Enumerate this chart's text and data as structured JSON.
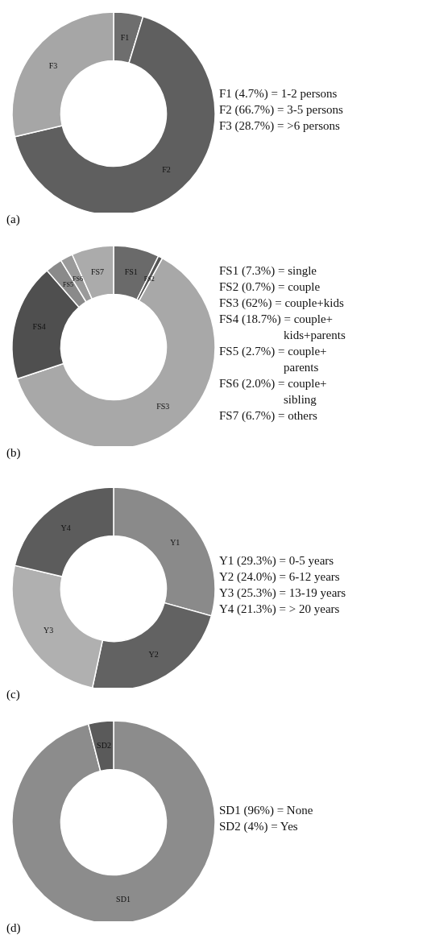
{
  "chart_data": [
    {
      "type": "donut",
      "title": "(a)",
      "categories": [
        "F1",
        "F2",
        "F3"
      ],
      "values": [
        4.7,
        66.7,
        28.7
      ],
      "colors": [
        "#6e6e6e",
        "#5f5f5f",
        "#a6a6a6"
      ],
      "annotations": [
        "F1 (4.7%) = 1-2 persons",
        "F2 (66.7%) = 3-5 persons",
        "F3 (28.7%) = >6 persons"
      ]
    },
    {
      "type": "donut",
      "title": "(b)",
      "categories": [
        "FS1",
        "FS2",
        "FS3",
        "FS4",
        "FS5",
        "FS6",
        "FS7"
      ],
      "values": [
        7.3,
        0.7,
        62,
        18.7,
        2.7,
        2.0,
        6.7
      ],
      "colors": [
        "#6a6a6a",
        "#555555",
        "#a8a8a8",
        "#4f4f4f",
        "#8a8a8a",
        "#9a9a9a",
        "#ababab"
      ],
      "annotations": [
        "FS1 (7.3%) = single",
        "FS2 (0.7%) = couple",
        "FS3 (62%) = couple+kids",
        "FS4 (18.7%) = couple+\nkids+parents",
        "FS5 (2.7%) = couple+\nparents",
        "FS6 (2.0%) = couple+\nsibling",
        "FS7 (6.7%) = others"
      ]
    },
    {
      "type": "donut",
      "title": "(c)",
      "categories": [
        "Y1",
        "Y2",
        "Y3",
        "Y4"
      ],
      "values": [
        29.3,
        24.0,
        25.3,
        21.3
      ],
      "colors": [
        "#8a8a8a",
        "#626262",
        "#b0b0b0",
        "#5c5c5c"
      ],
      "annotations": [
        "Y1 (29.3%) = 0-5 years",
        "Y2 (24.0%) = 6-12 years",
        "Y3 (25.3%) = 13-19 years",
        "Y4 (21.3%) = > 20 years"
      ]
    },
    {
      "type": "donut",
      "title": "(d)",
      "categories": [
        "SD1",
        "SD2"
      ],
      "values": [
        96,
        4
      ],
      "colors": [
        "#8c8c8c",
        "#5a5a5a"
      ],
      "annotations": [
        "SD1 (96%) = None",
        "SD2 (4%) = Yes"
      ]
    }
  ]
}
